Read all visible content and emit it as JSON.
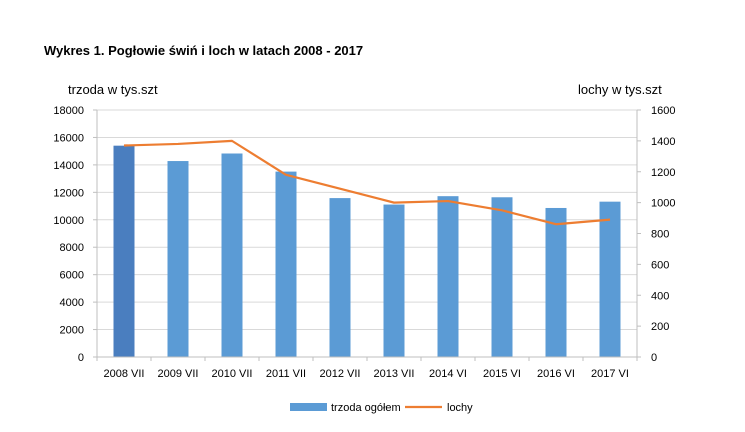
{
  "chart_data": {
    "type": "bar",
    "title": "Wykres 1.  Pogłowie świń i loch w latach 2008 - 2017",
    "ylabel_left": "trzoda w tys.szt",
    "ylabel_right": "lochy w tys.szt",
    "categories": [
      "2008 VII",
      "2009 VII",
      "2010 VII",
      "2011 VII",
      "2012 VII",
      "2013 VII",
      "2014 VI",
      "2015 VI",
      "2016 VI",
      "2017 VI"
    ],
    "series": [
      {
        "name": "trzoda ogółem",
        "kind": "bar",
        "axis": "left",
        "color": "#5b9bd5",
        "highlight_color": "#4a7ebf",
        "values": [
          15400,
          14280,
          14830,
          13510,
          11580,
          11110,
          11720,
          11640,
          10860,
          11320
        ]
      },
      {
        "name": "lochy",
        "kind": "line",
        "axis": "right",
        "color": "#ed7d31",
        "values": [
          1370,
          1380,
          1400,
          1180,
          1090,
          1000,
          1010,
          950,
          860,
          890
        ]
      }
    ],
    "ylim_left": [
      0,
      18000
    ],
    "yticks_left": [
      0,
      2000,
      4000,
      6000,
      8000,
      10000,
      12000,
      14000,
      16000,
      18000
    ],
    "ylim_right": [
      0,
      1600
    ],
    "yticks_right": [
      0,
      200,
      400,
      600,
      800,
      1000,
      1200,
      1400,
      1600
    ],
    "grid": true,
    "legend_position": "bottom"
  }
}
